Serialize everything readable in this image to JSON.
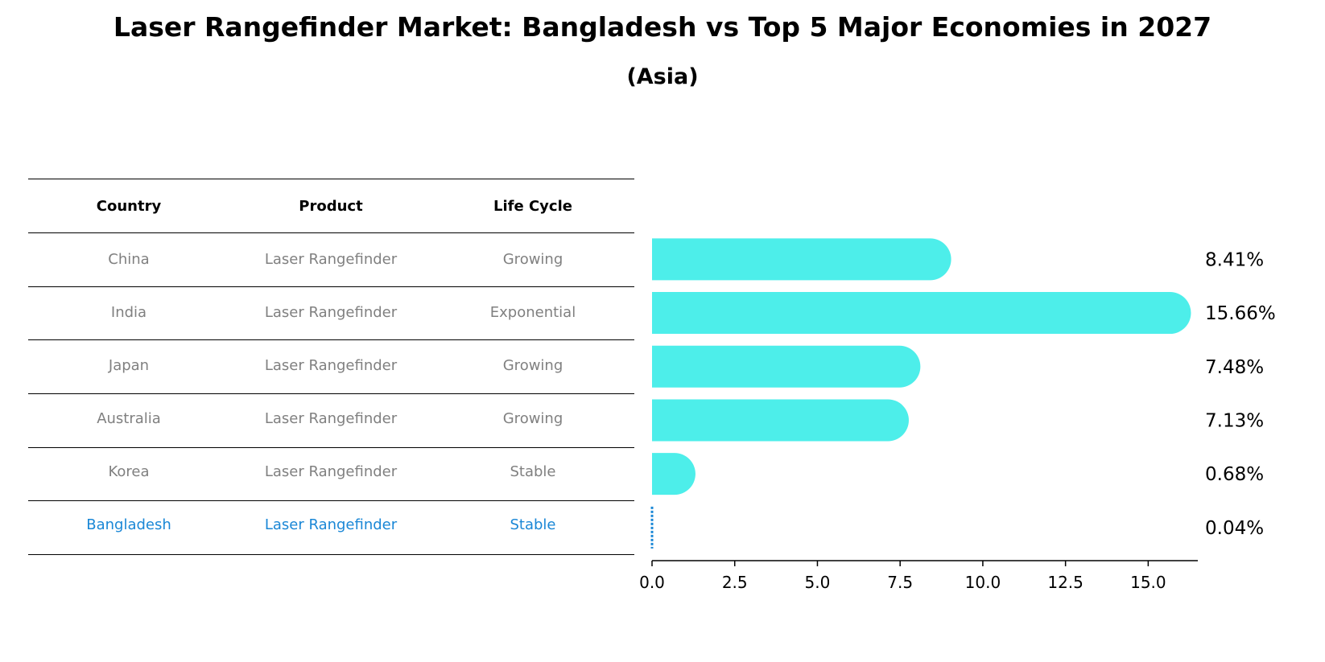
{
  "title": "Laser Rangefinder Market: Bangladesh vs Top 5 Major Economies in 2027",
  "subtitle": "(Asia)",
  "table": {
    "headers": [
      "Country",
      "Product",
      "Life Cycle"
    ],
    "rows": [
      [
        "China",
        "Laser Rangefinder",
        "Growing"
      ],
      [
        "India",
        "Laser Rangefinder",
        "Exponential"
      ],
      [
        "Japan",
        "Laser Rangefinder",
        "Growing"
      ],
      [
        "Australia",
        "Laser Rangefinder",
        "Growing"
      ],
      [
        "Korea",
        "Laser Rangefinder",
        "Stable"
      ],
      [
        "Bangladesh",
        "Laser Rangefinder",
        "Stable"
      ]
    ],
    "highlight_row": "Bangladesh"
  },
  "colors": {
    "bar": "#4deeea",
    "highlight": "#1a87d6",
    "muted_text": "#808080"
  },
  "chart_data": {
    "type": "bar",
    "orientation": "horizontal",
    "categories": [
      "China",
      "India",
      "Japan",
      "Australia",
      "Korea",
      "Bangladesh"
    ],
    "values": [
      8.41,
      15.66,
      7.48,
      7.13,
      0.68,
      0.04
    ],
    "value_labels": [
      "8.41%",
      "15.66%",
      "7.48%",
      "7.13%",
      "0.68%",
      "0.04%"
    ],
    "xlim": [
      0,
      16.5
    ],
    "xticks": [
      0.0,
      2.5,
      5.0,
      7.5,
      10.0,
      12.5,
      15.0
    ],
    "xtick_labels": [
      "0.0",
      "2.5",
      "5.0",
      "7.5",
      "10.0",
      "12.5",
      "15.0"
    ],
    "grid": false
  }
}
